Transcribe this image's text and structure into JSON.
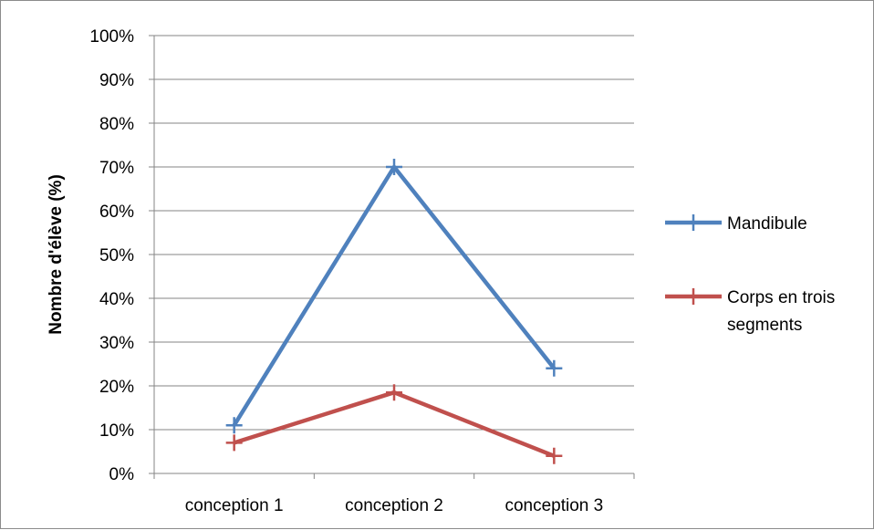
{
  "chart_data": {
    "type": "line",
    "categories": [
      "conception 1",
      "conception 2",
      "conception 3"
    ],
    "series": [
      {
        "name": "Mandibule",
        "values": [
          11,
          70,
          24
        ],
        "color": "#4f81bd",
        "marker": "plus"
      },
      {
        "name": "Corps en trois segments",
        "values": [
          7,
          18.5,
          4
        ],
        "color": "#c0504d",
        "marker": "plus"
      }
    ],
    "yticks": [
      "0%",
      "10%",
      "20%",
      "30%",
      "40%",
      "50%",
      "60%",
      "70%",
      "80%",
      "90%",
      "100%"
    ],
    "ylim": [
      0,
      100
    ],
    "ylabel": "Nombre d'élève (%)",
    "xlabel": "",
    "grid": true,
    "legend_position": "right",
    "legend_labels": {
      "mandibule": [
        "Mandibule"
      ],
      "corps": [
        "Corps en trois",
        "segments"
      ]
    }
  }
}
